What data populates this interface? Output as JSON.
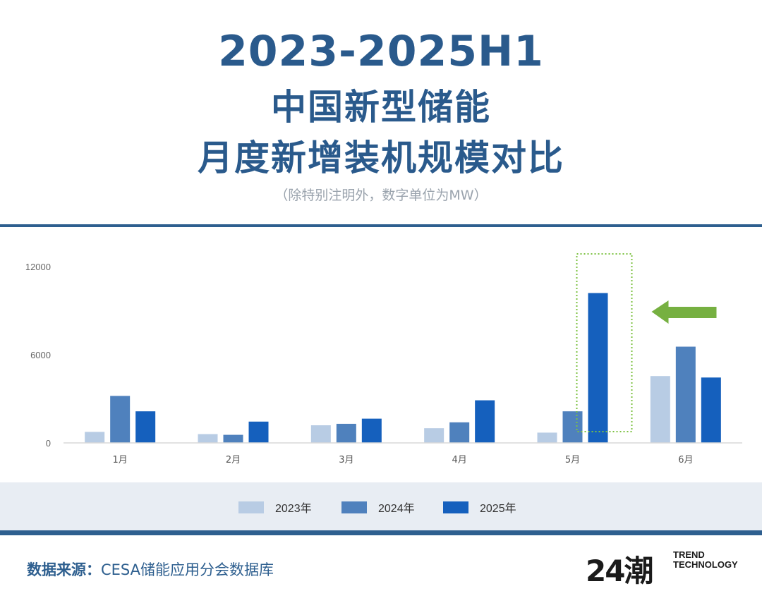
{
  "header": {
    "title_line1": "2023-2025H1",
    "title_line2": "中国新型储能",
    "title_line3": "月度新增装机规模对比",
    "note": "（除特别注明外，数字单位为MW）"
  },
  "chart_data": {
    "type": "bar",
    "categories": [
      "1月",
      "2月",
      "3月",
      "4月",
      "5月",
      "6月"
    ],
    "series": [
      {
        "name": "2023年",
        "values": [
          750,
          600,
          1200,
          1000,
          700,
          4550
        ],
        "color": "#b8cce4"
      },
      {
        "name": "2024年",
        "values": [
          3200,
          550,
          1300,
          1400,
          2150,
          6550
        ],
        "color": "#4f81bd"
      },
      {
        "name": "2025年",
        "values": [
          2150,
          1450,
          1650,
          2900,
          10200,
          4450
        ],
        "color": "#1560bd"
      }
    ],
    "y_ticks": [
      "0",
      "6000",
      "12000"
    ],
    "ylim": [
      0,
      12000
    ],
    "grid": false,
    "legend_position": "bottom",
    "highlight": {
      "category": "5月",
      "series": "2025年",
      "box_color": "#7cc242",
      "arrow_color": "#76b041"
    }
  },
  "footer": {
    "source_label": "数据来源：",
    "source_text": "CESA储能应用分会数据库",
    "brand_mark": "24潮",
    "brand_en_line1": "TREND",
    "brand_en_line2": "TECHNOLOGY"
  }
}
